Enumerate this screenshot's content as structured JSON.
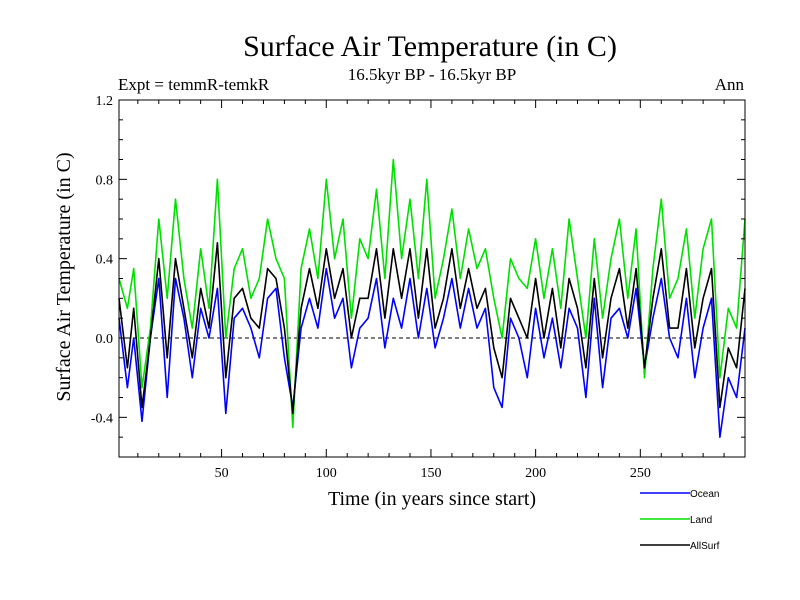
{
  "page": {
    "title": "Surface Air Temperature (in C)",
    "experiment": "Expt = temmR-temkR",
    "period": "16.5kyr BP - 16.5kyr BP",
    "season": "Ann"
  },
  "chart_data": {
    "type": "line",
    "title": "Surface Air Temperature (in C)",
    "xlabel": "Time (in years since start)",
    "ylabel": "Surface Air Temperature (in C)",
    "xlim": [
      1,
      300
    ],
    "ylim": [
      -0.6,
      1.2
    ],
    "x_ticks": [
      50,
      100,
      150,
      200,
      250
    ],
    "x_tick_labels": [
      "50",
      "100",
      "150",
      "200",
      "250"
    ],
    "y_ticks": [
      -0.4,
      0.0,
      0.4,
      0.8,
      1.2
    ],
    "y_tick_labels": [
      "-0.4",
      "0.0",
      "0.4",
      "0.8",
      "1.2"
    ],
    "zero_line": true,
    "legend_position": "bottom-right",
    "series": [
      {
        "name": "Ocean",
        "color": "#0000ff",
        "x": [
          1,
          5,
          8,
          12,
          16,
          20,
          24,
          28,
          32,
          36,
          40,
          44,
          48,
          52,
          56,
          60,
          64,
          68,
          72,
          76,
          80,
          84,
          88,
          92,
          96,
          100,
          104,
          108,
          112,
          116,
          120,
          124,
          128,
          132,
          136,
          140,
          144,
          148,
          152,
          156,
          160,
          164,
          168,
          172,
          176,
          180,
          184,
          188,
          192,
          196,
          200,
          204,
          208,
          212,
          216,
          220,
          224,
          228,
          232,
          236,
          240,
          244,
          248,
          252,
          256,
          260,
          264,
          268,
          272,
          276,
          280,
          284,
          288,
          292,
          296,
          300
        ],
        "values": [
          0.1,
          -0.25,
          0.0,
          -0.42,
          0.0,
          0.3,
          -0.3,
          0.3,
          0.1,
          -0.2,
          0.15,
          0.0,
          0.25,
          -0.38,
          0.1,
          0.15,
          0.05,
          -0.1,
          0.2,
          0.25,
          -0.1,
          -0.35,
          0.05,
          0.2,
          0.05,
          0.35,
          0.1,
          0.2,
          -0.15,
          0.05,
          0.1,
          0.3,
          -0.05,
          0.2,
          0.05,
          0.3,
          0.0,
          0.25,
          -0.05,
          0.1,
          0.3,
          0.05,
          0.25,
          0.05,
          0.15,
          -0.25,
          -0.35,
          0.1,
          0.0,
          -0.2,
          0.15,
          -0.1,
          0.1,
          -0.15,
          0.15,
          0.05,
          -0.3,
          0.2,
          -0.25,
          0.1,
          0.15,
          0.0,
          0.25,
          -0.15,
          0.1,
          0.3,
          0.0,
          -0.1,
          0.2,
          -0.2,
          0.05,
          0.2,
          -0.5,
          -0.2,
          -0.3,
          0.05
        ]
      },
      {
        "name": "Land",
        "color": "#00e000",
        "x": [
          1,
          5,
          8,
          12,
          16,
          20,
          24,
          28,
          32,
          36,
          40,
          44,
          48,
          52,
          56,
          60,
          64,
          68,
          72,
          76,
          80,
          84,
          88,
          92,
          96,
          100,
          104,
          108,
          112,
          116,
          120,
          124,
          128,
          132,
          136,
          140,
          144,
          148,
          152,
          156,
          160,
          164,
          168,
          172,
          176,
          180,
          184,
          188,
          192,
          196,
          200,
          204,
          208,
          212,
          216,
          220,
          224,
          228,
          232,
          236,
          240,
          244,
          248,
          252,
          256,
          260,
          264,
          268,
          272,
          276,
          280,
          284,
          288,
          292,
          296,
          300
        ],
        "values": [
          0.3,
          0.15,
          0.35,
          -0.25,
          0.05,
          0.6,
          0.2,
          0.7,
          0.3,
          0.05,
          0.45,
          0.15,
          0.8,
          0.0,
          0.35,
          0.45,
          0.2,
          0.3,
          0.6,
          0.4,
          0.3,
          -0.45,
          0.35,
          0.55,
          0.3,
          0.8,
          0.4,
          0.6,
          0.1,
          0.5,
          0.4,
          0.75,
          0.3,
          0.9,
          0.4,
          0.7,
          0.3,
          0.8,
          0.2,
          0.4,
          0.65,
          0.3,
          0.55,
          0.35,
          0.45,
          0.2,
          0.0,
          0.4,
          0.3,
          0.25,
          0.5,
          0.2,
          0.45,
          0.15,
          0.6,
          0.3,
          0.0,
          0.5,
          0.1,
          0.4,
          0.6,
          0.2,
          0.55,
          -0.2,
          0.35,
          0.7,
          0.2,
          0.3,
          0.55,
          0.1,
          0.45,
          0.6,
          -0.2,
          0.15,
          0.05,
          0.6
        ]
      },
      {
        "name": "AllSurf",
        "color": "#000000",
        "x": [
          1,
          5,
          8,
          12,
          16,
          20,
          24,
          28,
          32,
          36,
          40,
          44,
          48,
          52,
          56,
          60,
          64,
          68,
          72,
          76,
          80,
          84,
          88,
          92,
          96,
          100,
          104,
          108,
          112,
          116,
          120,
          124,
          128,
          132,
          136,
          140,
          144,
          148,
          152,
          156,
          160,
          164,
          168,
          172,
          176,
          180,
          184,
          188,
          192,
          196,
          200,
          204,
          208,
          212,
          216,
          220,
          224,
          228,
          232,
          236,
          240,
          244,
          248,
          252,
          256,
          260,
          264,
          268,
          272,
          276,
          280,
          284,
          288,
          292,
          296,
          300
        ],
        "values": [
          0.2,
          -0.15,
          0.15,
          -0.35,
          0.0,
          0.4,
          -0.1,
          0.4,
          0.15,
          -0.1,
          0.25,
          0.05,
          0.48,
          -0.2,
          0.2,
          0.25,
          0.1,
          0.05,
          0.35,
          0.3,
          0.05,
          -0.38,
          0.15,
          0.35,
          0.15,
          0.45,
          0.2,
          0.35,
          0.0,
          0.2,
          0.2,
          0.45,
          0.1,
          0.45,
          0.2,
          0.45,
          0.1,
          0.45,
          0.05,
          0.2,
          0.45,
          0.15,
          0.35,
          0.15,
          0.25,
          -0.05,
          -0.2,
          0.2,
          0.1,
          0.0,
          0.3,
          0.0,
          0.25,
          -0.05,
          0.3,
          0.15,
          -0.15,
          0.3,
          -0.1,
          0.2,
          0.35,
          0.05,
          0.35,
          -0.15,
          0.2,
          0.45,
          0.05,
          0.05,
          0.35,
          -0.05,
          0.2,
          0.35,
          -0.35,
          -0.05,
          -0.15,
          0.25
        ]
      }
    ]
  }
}
